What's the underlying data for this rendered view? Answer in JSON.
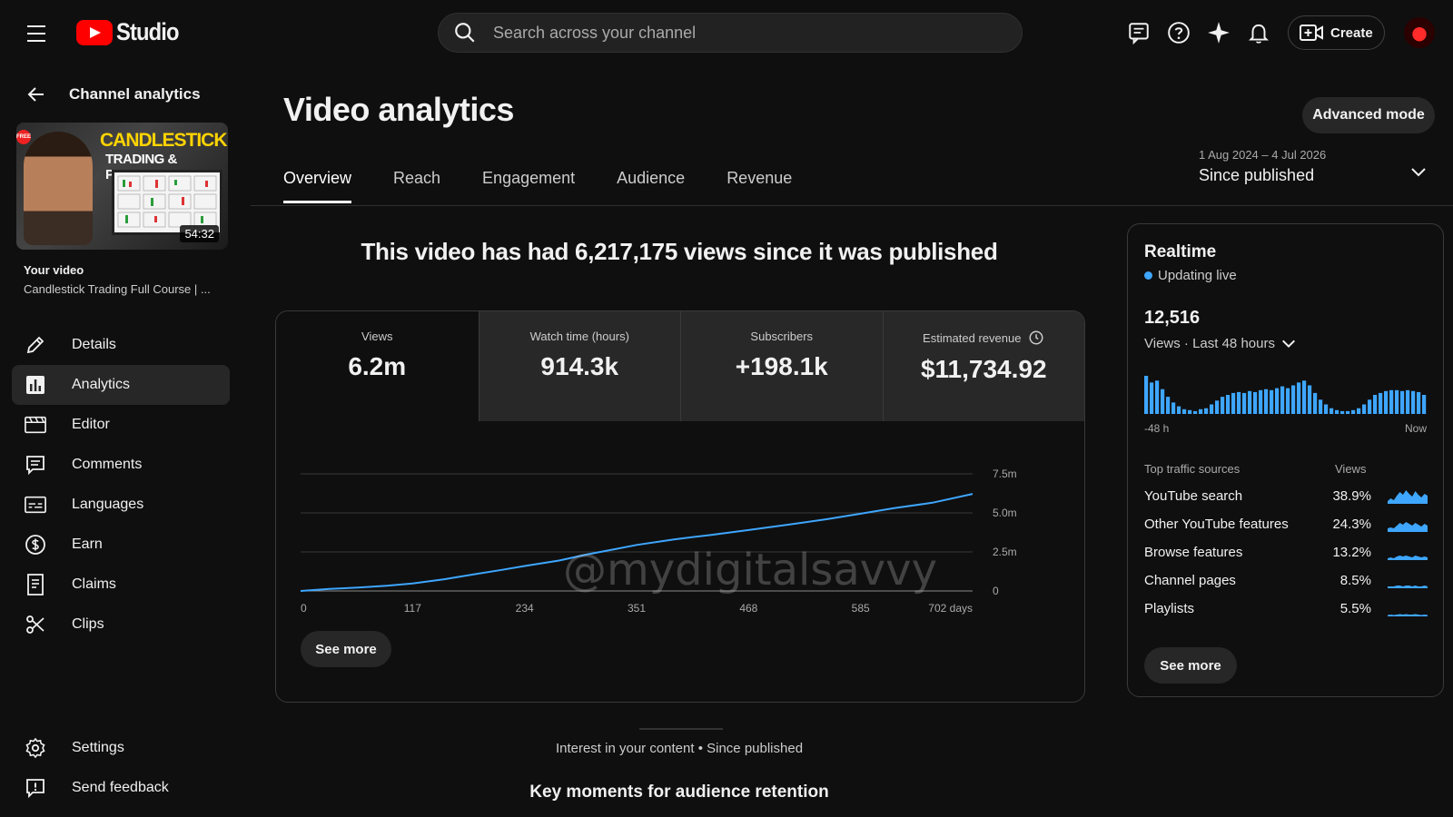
{
  "app": {
    "logo_text": "Studio",
    "search_placeholder": "Search across your channel",
    "create_label": "Create"
  },
  "sidebar": {
    "back_label": "Channel analytics",
    "thumbnail": {
      "title_line1": "CANDLESTICK",
      "title_line2": "TRADING & PATTERN",
      "badge": "FREE",
      "duration": "54:32"
    },
    "your_video_label": "Your video",
    "video_title": "Candlestick Trading Full Course | ...",
    "items": [
      {
        "label": "Details",
        "icon": "pencil-icon"
      },
      {
        "label": "Analytics",
        "icon": "analytics-icon"
      },
      {
        "label": "Editor",
        "icon": "editor-icon"
      },
      {
        "label": "Comments",
        "icon": "comments-icon"
      },
      {
        "label": "Languages",
        "icon": "subtitles-icon"
      },
      {
        "label": "Earn",
        "icon": "dollar-icon"
      },
      {
        "label": "Claims",
        "icon": "claims-icon"
      },
      {
        "label": "Clips",
        "icon": "scissors-icon"
      }
    ],
    "settings_label": "Settings",
    "feedback_label": "Send feedback"
  },
  "main": {
    "title": "Video analytics",
    "advanced_mode_label": "Advanced mode",
    "tabs": [
      "Overview",
      "Reach",
      "Engagement",
      "Audience",
      "Revenue"
    ],
    "active_tab": "Overview",
    "date_range": "1 Aug 2024 – 4 Jul 2026",
    "date_label": "Since published",
    "headline": "This video has had 6,217,175 views since it was published",
    "metrics": [
      {
        "label": "Views",
        "value": "6.2m"
      },
      {
        "label": "Watch time (hours)",
        "value": "914.3k"
      },
      {
        "label": "Subscribers",
        "value": "+198.1k"
      },
      {
        "label": "Estimated revenue",
        "value": "$11,734.92"
      }
    ],
    "see_more_label": "See more",
    "watermark": "@mydigitalsavvy",
    "interest_text": "Interest in your content • Since published",
    "key_moments_title": "Key moments for audience retention"
  },
  "chart_data": {
    "type": "line",
    "x_tick_labels": [
      "0",
      "117",
      "234",
      "351",
      "468",
      "585",
      "702 days"
    ],
    "y_tick_labels": [
      "0",
      "2.5m",
      "5.0m",
      "7.5m"
    ],
    "ylim": [
      0,
      7500000
    ],
    "xlim": [
      0,
      702
    ],
    "series": [
      {
        "color": "#3ea6ff",
        "x": [
          0,
          30,
          60,
          90,
          117,
          150,
          180,
          210,
          234,
          270,
          300,
          330,
          351,
          390,
          430,
          468,
          510,
          550,
          585,
          620,
          660,
          702
        ],
        "y": [
          0,
          130000,
          220000,
          330000,
          480000,
          750000,
          1050000,
          1350000,
          1600000,
          1950000,
          2350000,
          2700000,
          2950000,
          3300000,
          3600000,
          3900000,
          4250000,
          4600000,
          4950000,
          5300000,
          5650000,
          6217175
        ]
      }
    ],
    "grid": true
  },
  "realtime": {
    "title": "Realtime",
    "live_label": "Updating live",
    "views_count": "12,516",
    "views_period": "Views · Last 48 hours",
    "axis_start": "-48 h",
    "axis_end": "Now",
    "bar_color": "#3ea6ff",
    "bars": [
      40,
      33,
      35,
      26,
      18,
      12,
      8,
      5,
      4,
      3,
      5,
      6,
      10,
      14,
      18,
      20,
      22,
      23,
      22,
      24,
      23,
      25,
      26,
      25,
      27,
      29,
      27,
      30,
      33,
      35,
      30,
      22,
      15,
      10,
      6,
      4,
      3,
      3,
      4,
      6,
      10,
      15,
      20,
      22,
      24,
      25,
      25,
      24,
      25,
      24,
      23,
      20
    ],
    "traffic_header": "Top traffic sources",
    "traffic_views_header": "Views",
    "traffic_sources": [
      {
        "name": "YouTube search",
        "percent": "38.9%"
      },
      {
        "name": "Other YouTube features",
        "percent": "24.3%"
      },
      {
        "name": "Browse features",
        "percent": "13.2%"
      },
      {
        "name": "Channel pages",
        "percent": "8.5%"
      },
      {
        "name": "Playlists",
        "percent": "5.5%"
      }
    ],
    "see_more_label": "See more"
  }
}
